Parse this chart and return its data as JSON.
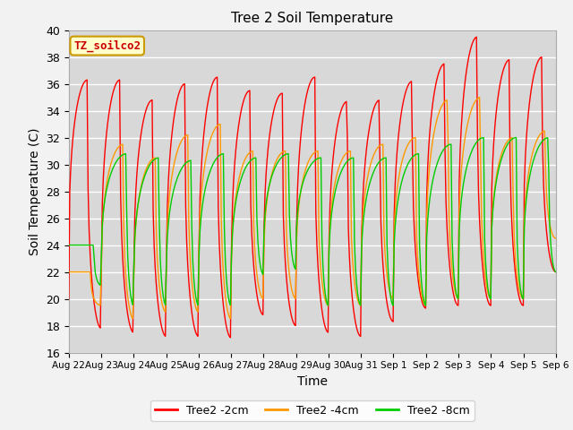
{
  "title": "Tree 2 Soil Temperature",
  "xlabel": "Time",
  "ylabel": "Soil Temperature (C)",
  "ylim": [
    16,
    40
  ],
  "annotation": "TZ_soilco2",
  "legend": [
    "Tree2 -2cm",
    "Tree2 -4cm",
    "Tree2 -8cm"
  ],
  "colors": [
    "#ff0000",
    "#ff9900",
    "#00cc00"
  ],
  "bg_color": "#d8d8d8",
  "grid_color": "#ffffff",
  "xtick_labels": [
    "Aug 22",
    "Aug 23",
    "Aug 24",
    "Aug 25",
    "Aug 26",
    "Aug 27",
    "Aug 28",
    "Aug 29",
    "Aug 30",
    "Aug 31",
    "Sep 1",
    "Sep 2",
    "Sep 3",
    "Sep 4",
    "Sep 5",
    "Sep 6"
  ],
  "day_peaks_2cm": [
    36.3,
    36.3,
    34.8,
    36.0,
    36.5,
    35.5,
    35.3,
    36.5,
    34.7,
    34.8,
    36.2,
    37.5,
    39.5,
    37.8,
    38.0,
    38.2
  ],
  "day_troughs_2cm": [
    20.0,
    17.8,
    17.5,
    17.2,
    17.2,
    17.1,
    18.8,
    18.0,
    17.5,
    17.2,
    18.3,
    19.3,
    19.5,
    19.5,
    19.5,
    22.0
  ],
  "day_peaks_4cm": [
    22.0,
    31.5,
    30.5,
    32.2,
    33.0,
    31.0,
    31.0,
    31.0,
    31.0,
    31.5,
    32.0,
    34.8,
    35.0,
    32.0,
    32.5,
    34.5
  ],
  "day_troughs_4cm": [
    22.0,
    19.5,
    18.5,
    19.0,
    19.0,
    18.5,
    20.0,
    20.0,
    19.5,
    19.5,
    20.0,
    19.5,
    20.0,
    20.0,
    20.0,
    24.5
  ],
  "day_peaks_8cm": [
    24.0,
    30.8,
    30.5,
    30.3,
    30.8,
    30.5,
    30.8,
    30.5,
    30.5,
    30.5,
    30.8,
    31.5,
    32.0,
    32.0,
    32.0,
    32.0
  ],
  "day_troughs_8cm": [
    24.0,
    21.0,
    19.5,
    19.5,
    19.5,
    19.5,
    21.8,
    22.2,
    19.5,
    19.5,
    19.5,
    19.5,
    20.0,
    20.0,
    20.0,
    22.0
  ],
  "peak_time_2cm": 0.58,
  "peak_time_4cm": 0.68,
  "peak_time_8cm": 0.78,
  "sharpness": 3.5
}
